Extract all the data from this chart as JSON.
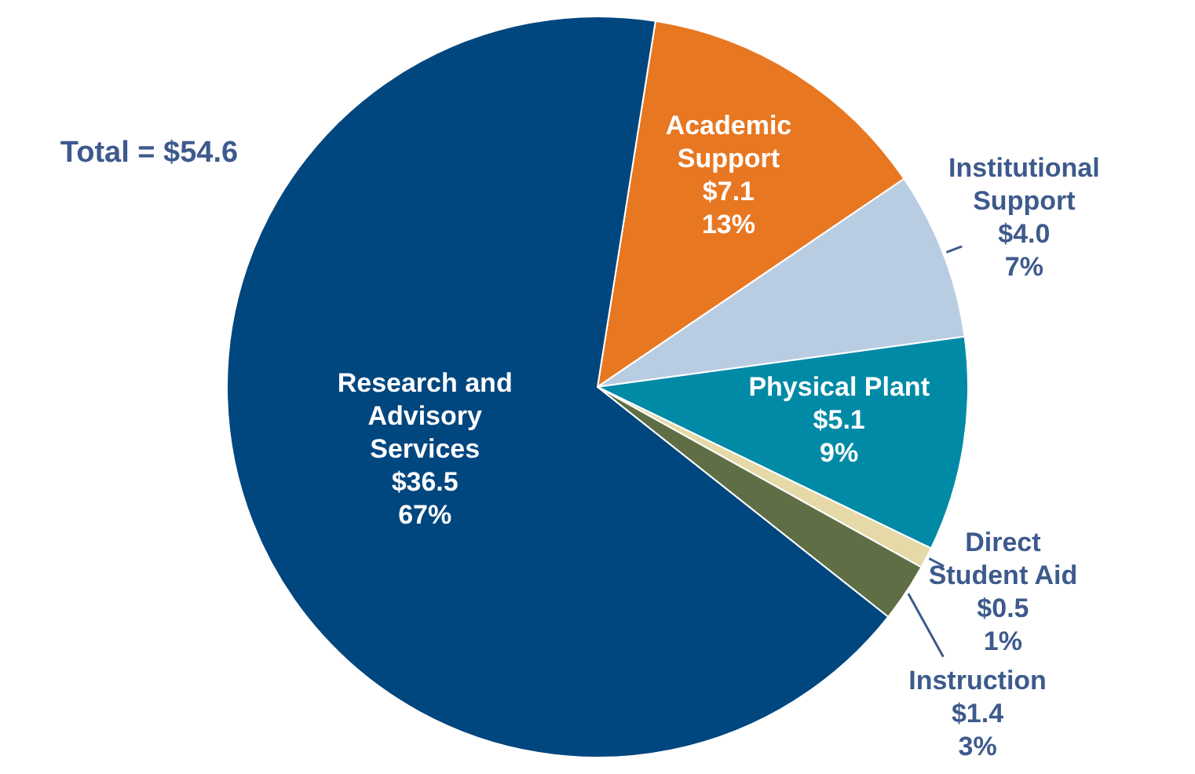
{
  "chart_data": {
    "type": "pie",
    "categories": [
      "Academic\nSupport",
      "Institutional\nSupport",
      "Physical Plant",
      "Direct\nStudent Aid",
      "Instruction",
      "Research and\nAdvisory\nServices"
    ],
    "values": [
      7.1,
      4.0,
      5.1,
      0.5,
      1.4,
      36.5
    ],
    "value_labels": [
      "$7.1\n13%",
      "$4.0\n7%",
      "$5.1\n9%",
      "$0.5\n1%",
      "$1.4\n3%",
      "$36.5\n67%"
    ],
    "colors": [
      "#e87722",
      "#b9cde2",
      "#008aa6",
      "#e5d9a8",
      "#5f6e45",
      "#00467f"
    ],
    "annotations": [
      "Total = $54.6"
    ]
  }
}
